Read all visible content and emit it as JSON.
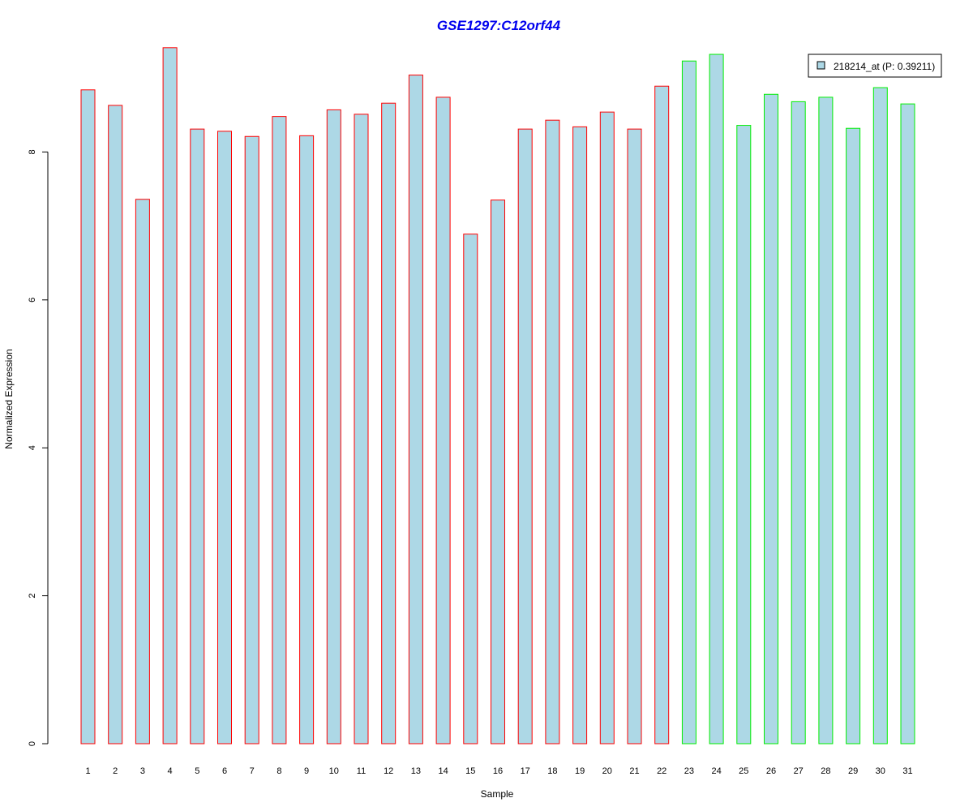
{
  "chart_data": {
    "type": "bar",
    "title": "GSE1297:C12orf44",
    "xlabel": "Sample",
    "ylabel": "Normalized Expression",
    "ylim": [
      0,
      9.4
    ],
    "yticks": [
      "0",
      "2",
      "4",
      "6",
      "8"
    ],
    "grid": false,
    "legend_position": "top-right",
    "categories": [
      "1",
      "2",
      "3",
      "4",
      "5",
      "6",
      "7",
      "8",
      "9",
      "10",
      "11",
      "12",
      "13",
      "14",
      "15",
      "16",
      "17",
      "18",
      "19",
      "20",
      "21",
      "22",
      "23",
      "24",
      "25",
      "26",
      "27",
      "28",
      "29",
      "30",
      "31"
    ],
    "series": [
      {
        "name": "218214_at (P: 0.39211)",
        "fill": "#add8e6",
        "values": [
          8.84,
          8.63,
          7.36,
          9.41,
          8.31,
          8.28,
          8.21,
          8.48,
          8.22,
          8.57,
          8.51,
          8.66,
          9.04,
          8.74,
          6.89,
          7.35,
          8.31,
          8.43,
          8.34,
          8.54,
          8.31,
          8.89,
          9.23,
          9.32,
          8.36,
          8.78,
          8.68,
          8.74,
          8.32,
          8.87,
          8.65
        ],
        "groups": [
          "red",
          "red",
          "red",
          "red",
          "red",
          "red",
          "red",
          "red",
          "red",
          "red",
          "red",
          "red",
          "red",
          "red",
          "red",
          "red",
          "red",
          "red",
          "red",
          "red",
          "red",
          "red",
          "green",
          "green",
          "green",
          "green",
          "green",
          "green",
          "green",
          "green",
          "green"
        ]
      }
    ],
    "group_colors": {
      "red": "#ff0000",
      "green": "#00ee00"
    }
  }
}
